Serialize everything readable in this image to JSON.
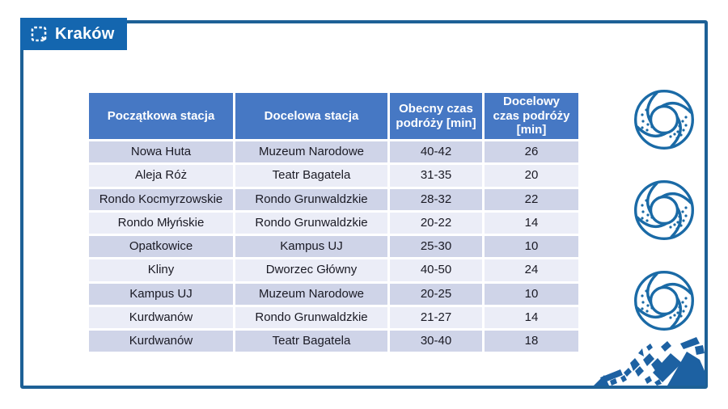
{
  "badge": {
    "label": "Kraków"
  },
  "icons": {
    "logo": "krakow-dashed-square-logo",
    "bagel": "obwarzanek-bagel-icon",
    "bagel_count": 3,
    "map": "city-map-decoration"
  },
  "colors": {
    "frame_border": "#1d6096",
    "badge_bg": "#1466af",
    "header_bg": "#4678c4",
    "row_odd": "#cfd4e8",
    "row_even": "#ebedf7",
    "icon_blue": "#1a6aa6",
    "map_blue": "#1d61a2",
    "text_dark": "#1a1a24"
  },
  "table": {
    "columns": [
      "Początkowa stacja",
      "Docelowa stacja",
      "Obecny czas podróży [min]",
      "Docelowy czas podróży [min]"
    ],
    "rows": [
      [
        "Nowa Huta",
        "Muzeum Narodowe",
        "40-42",
        "26"
      ],
      [
        "Aleja Róż",
        "Teatr Bagatela",
        "31-35",
        "20"
      ],
      [
        "Rondo Kocmyrzowskie",
        "Rondo Grunwaldzkie",
        "28-32",
        "22"
      ],
      [
        "Rondo Młyńskie",
        "Rondo Grunwaldzkie",
        "20-22",
        "14"
      ],
      [
        "Opatkowice",
        "Kampus UJ",
        "25-30",
        "10"
      ],
      [
        "Kliny",
        "Dworzec Główny",
        "40-50",
        "24"
      ],
      [
        "Kampus UJ",
        "Muzeum Narodowe",
        "20-25",
        "10"
      ],
      [
        "Kurdwanów",
        "Rondo Grunwaldzkie",
        "21-27",
        "14"
      ],
      [
        "Kurdwanów",
        "Teatr Bagatela",
        "30-40",
        "18"
      ]
    ]
  }
}
